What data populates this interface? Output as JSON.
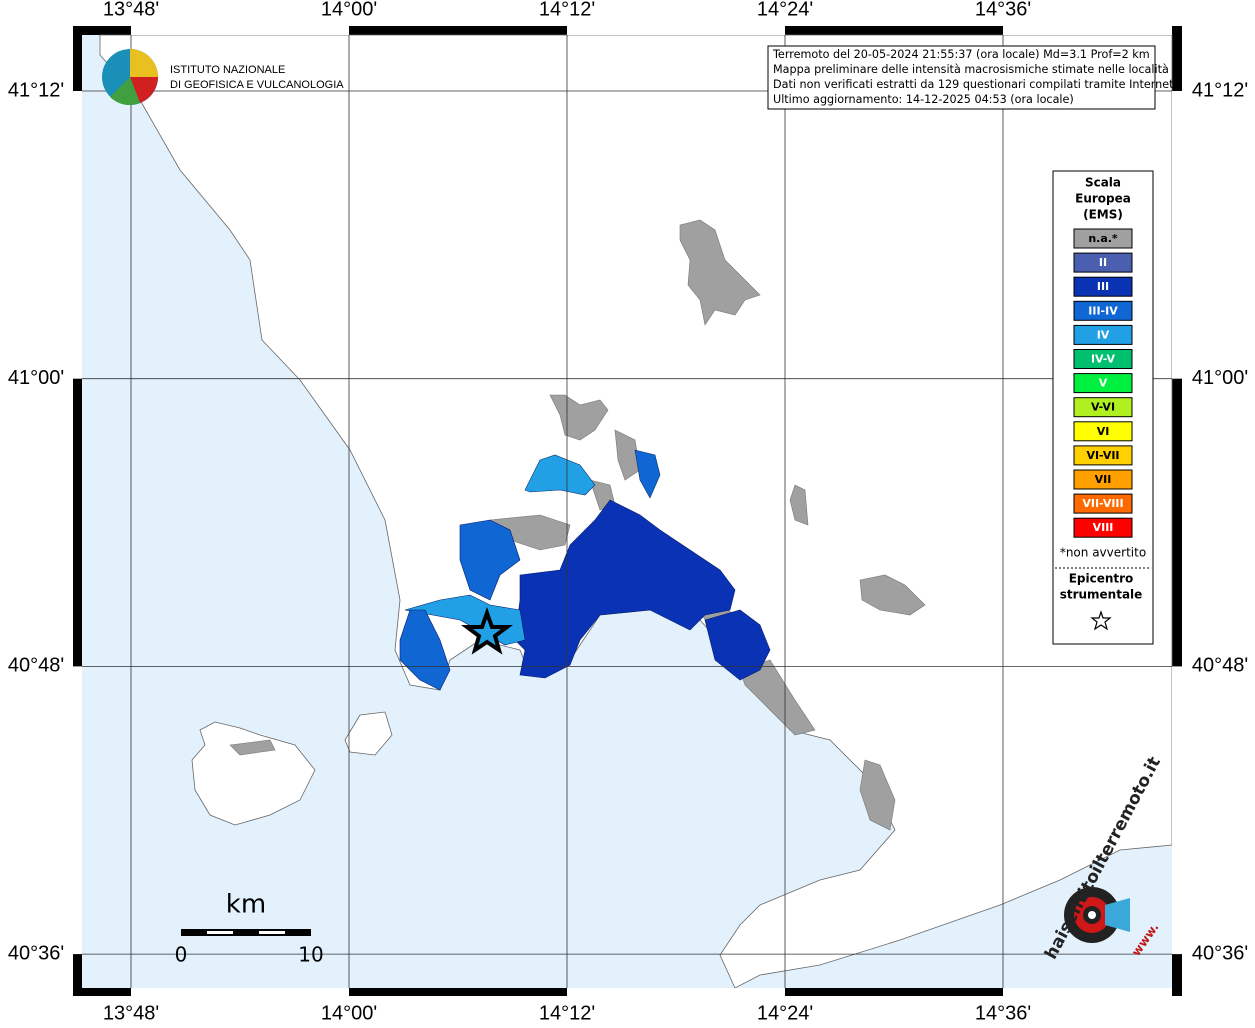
{
  "map": {
    "lon_labels": [
      "13°48'",
      "14°00'",
      "14°12'",
      "14°24'",
      "14°36'"
    ],
    "lat_labels": [
      "41°12'",
      "41°00'",
      "40°48'",
      "40°36'"
    ],
    "info_box": [
      "Terremoto del 20-05-2024 21:55:37 (ora locale) Md=3.1 Prof=2 km",
      "Mappa preliminare delle intensità macrosismiche stimate nelle località",
      "Dati non verificati estratti da 129 questionari compilati tramite Internet.",
      "Ultimo aggiornamento: 14-12-2025 04:53 (ora locale)"
    ],
    "logo": [
      "ISTITUTO NAZIONALE",
      "DI GEOFISICA E VULCANOLOGIA"
    ],
    "legend": {
      "title": [
        "Scala",
        "Europea",
        "(EMS)"
      ],
      "items": [
        {
          "label": "n.a.*",
          "color": "#a0a0a0"
        },
        {
          "label": "II",
          "color": "#4a5fb0"
        },
        {
          "label": "III",
          "color": "#0a32b4"
        },
        {
          "label": "III-IV",
          "color": "#1066d2"
        },
        {
          "label": "IV",
          "color": "#22a0e6"
        },
        {
          "label": "IV-V",
          "color": "#00c070"
        },
        {
          "label": "V",
          "color": "#00f040"
        },
        {
          "label": "V-VI",
          "color": "#b0f020"
        },
        {
          "label": "VI",
          "color": "#ffff00"
        },
        {
          "label": "VI-VII",
          "color": "#ffd000"
        },
        {
          "label": "VII",
          "color": "#ffa000"
        },
        {
          "label": "VII-VIII",
          "color": "#ff6a00"
        },
        {
          "label": "VIII",
          "color": "#ff0000"
        }
      ],
      "note": "*non avvertito",
      "epicenter": [
        "Epicentro",
        "strumentale"
      ]
    },
    "scale_bar": {
      "unit": "km",
      "labels": [
        0,
        10
      ]
    },
    "watermark": {
      "site": "haisentitoilterremoto.it",
      "prefix": "www."
    }
  }
}
